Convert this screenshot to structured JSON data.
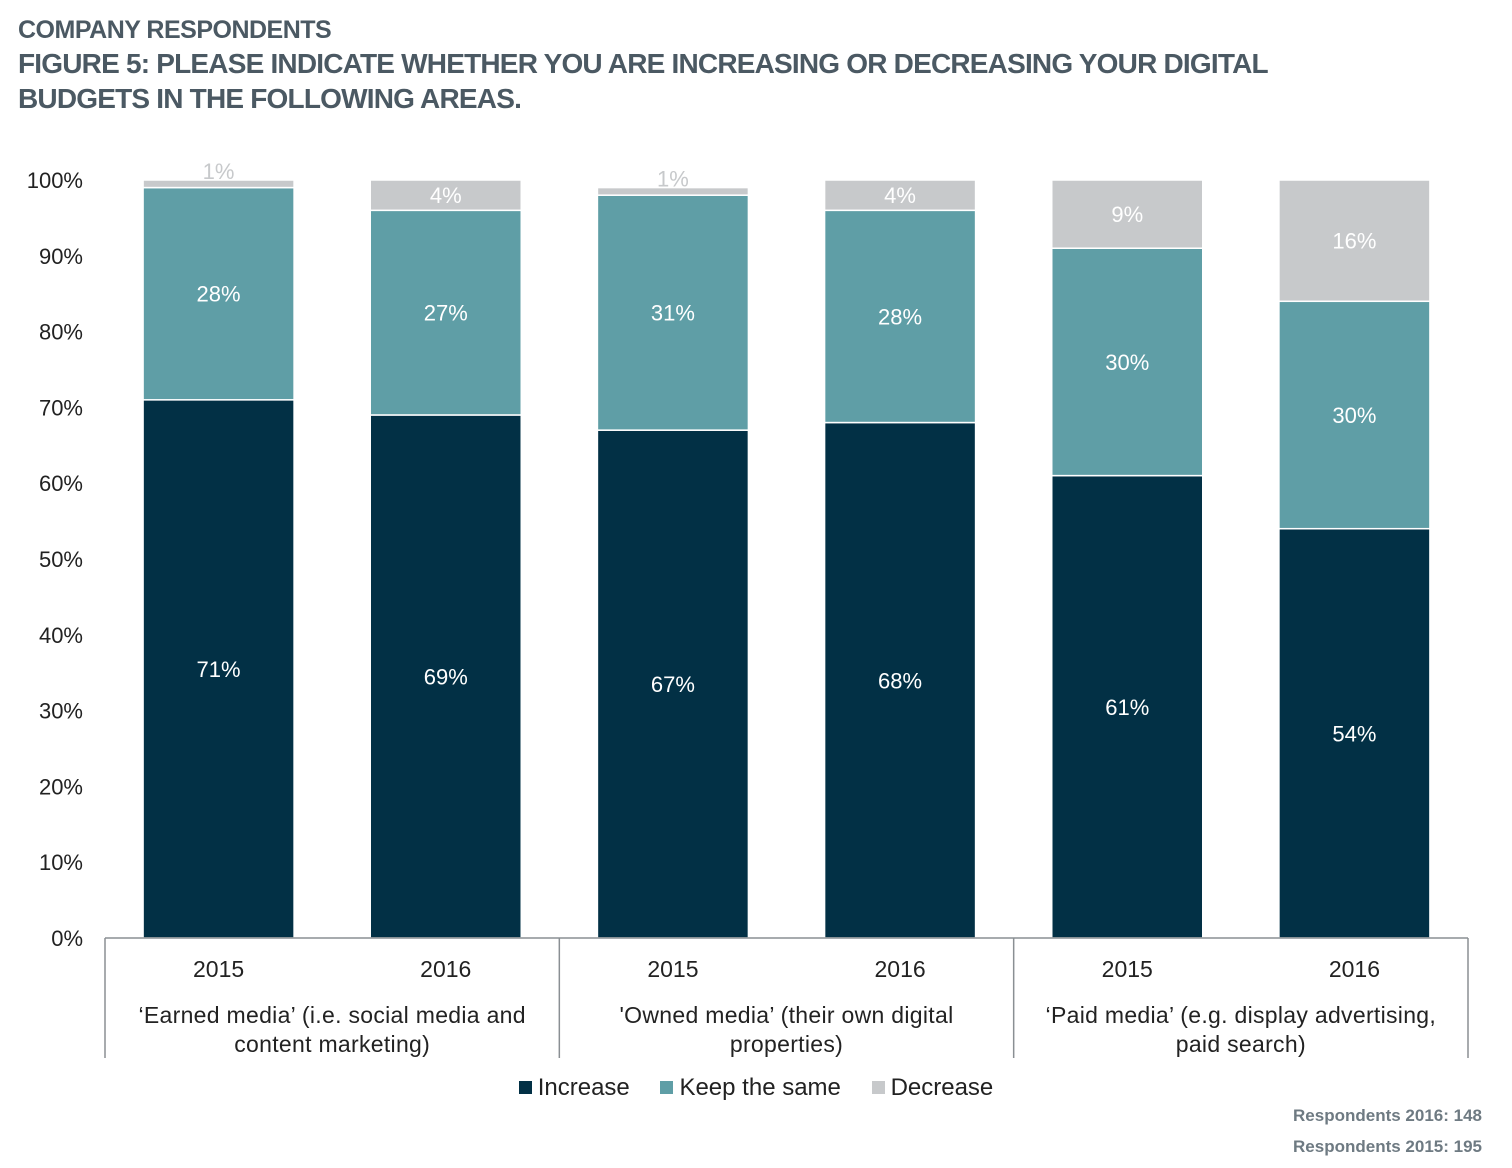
{
  "header": {
    "kicker": "COMPANY RESPONDENTS",
    "title_line1": "FIGURE 5: PLEASE INDICATE WHETHER YOU ARE INCREASING OR DECREASING YOUR DIGITAL",
    "title_line2": "BUDGETS IN THE FOLLOWING AREAS."
  },
  "chart_data": {
    "type": "bar",
    "stacked": true,
    "title": "FIGURE 5: PLEASE INDICATE WHETHER YOU ARE INCREASING OR DECREASING YOUR DIGITAL BUDGETS IN THE FOLLOWING AREAS.",
    "ylim": [
      0,
      100
    ],
    "yticks": [
      "0%",
      "10%",
      "20%",
      "30%",
      "40%",
      "50%",
      "60%",
      "70%",
      "80%",
      "90%",
      "100%"
    ],
    "categories": [
      "2015",
      "2016",
      "2015",
      "2016",
      "2015",
      "2016"
    ],
    "groups": [
      {
        "label_lines": [
          "‘Earned media’ (i.e. social media and",
          "content marketing)"
        ]
      },
      {
        "label_lines": [
          "'Owned media’ (their own digital",
          "properties)"
        ]
      },
      {
        "label_lines": [
          "‘Paid media’ (e.g. display advertising,",
          "paid search)"
        ]
      }
    ],
    "series": [
      {
        "name": "Increase",
        "color": "#023045",
        "label_color": "#ffffff",
        "values": [
          71,
          69,
          67,
          68,
          61,
          54
        ]
      },
      {
        "name": "Keep the same",
        "color": "#5f9ea6",
        "label_color": "#ffffff",
        "values": [
          28,
          27,
          31,
          28,
          30,
          30
        ]
      },
      {
        "name": "Decrease",
        "color": "#c7c9cb",
        "label_color": "#ffffff",
        "values": [
          1,
          4,
          1,
          4,
          9,
          16
        ]
      }
    ],
    "small_label_color": "#c7c9cb",
    "legend_position": "bottom"
  },
  "footer": {
    "respondents_2016": "Respondents 2016: 148",
    "respondents_2015": "Respondents 2015: 195"
  }
}
